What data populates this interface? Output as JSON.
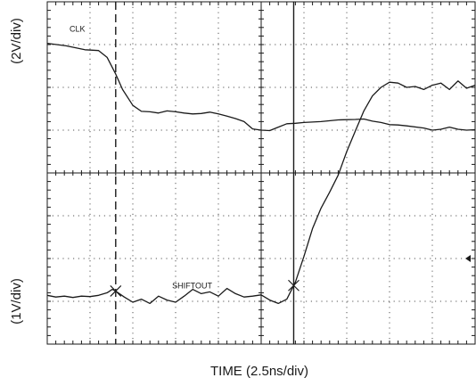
{
  "chart_data": {
    "type": "line",
    "title": "",
    "xlabel": "TIME (2.5ns/div)",
    "ylabel_top": "(2V/div)",
    "ylabel_bottom": "(1V/div)",
    "x_unit": "ns",
    "xlim": [
      0,
      25
    ],
    "divisions": {
      "x": 10,
      "y": 8
    },
    "grid": true,
    "series": [
      {
        "name": "CLK",
        "display_range_div": [
          4,
          8
        ],
        "x": [
          0,
          1.1,
          2.2,
          3.0,
          3.5,
          4.0,
          4.4,
          5.0,
          5.5,
          6.0,
          6.5,
          7.0,
          7.5,
          8.0,
          8.5,
          9.0,
          9.5,
          10.0,
          10.5,
          11.0,
          11.5,
          12.0,
          12.5,
          13.0,
          13.5,
          14.0,
          14.5,
          15.0,
          16.0,
          17.0,
          18.0,
          18.5,
          19.0,
          19.5,
          20.0,
          20.5,
          21.0,
          22.0,
          22.5,
          23.0,
          23.5,
          24.0,
          24.5,
          25.0
        ],
        "y_div": [
          7.03,
          6.97,
          6.88,
          6.86,
          6.7,
          6.31,
          5.95,
          5.58,
          5.44,
          5.43,
          5.4,
          5.45,
          5.43,
          5.4,
          5.38,
          5.39,
          5.42,
          5.38,
          5.33,
          5.27,
          5.2,
          5.03,
          5.0,
          4.99,
          5.07,
          5.15,
          5.16,
          5.18,
          5.2,
          5.24,
          5.25,
          5.26,
          5.21,
          5.18,
          5.13,
          5.12,
          5.1,
          5.05,
          5.0,
          5.02,
          5.07,
          5.02,
          5.0,
          5.01
        ]
      },
      {
        "name": "SHIFTOUT",
        "display_range_div": [
          0,
          4
        ],
        "x": [
          0,
          0.5,
          1.0,
          1.5,
          2.0,
          2.5,
          3.0,
          3.5,
          3.8,
          4.0,
          4.5,
          5.0,
          5.5,
          6.0,
          6.5,
          7.0,
          7.5,
          8.0,
          8.5,
          9.0,
          9.5,
          10.0,
          10.5,
          11.0,
          11.5,
          12.0,
          12.5,
          13.0,
          13.5,
          14.0,
          14.5,
          15.0,
          15.5,
          16.0,
          16.5,
          17.0,
          17.5,
          18.0,
          18.5,
          19.0,
          19.5,
          20.0,
          20.5,
          21.0,
          21.5,
          22.0,
          22.5,
          23.0,
          23.5,
          24.0,
          24.5,
          25.0
        ],
        "y_div": [
          1.14,
          1.1,
          1.12,
          1.09,
          1.12,
          1.11,
          1.14,
          1.2,
          1.28,
          1.24,
          1.1,
          0.98,
          1.05,
          0.95,
          1.12,
          1.03,
          0.98,
          1.12,
          1.28,
          1.18,
          1.22,
          1.12,
          1.3,
          1.18,
          1.1,
          1.12,
          1.15,
          1.03,
          0.95,
          1.05,
          1.45,
          2.05,
          2.7,
          3.18,
          3.55,
          3.95,
          4.5,
          4.98,
          5.45,
          5.8,
          6.0,
          6.12,
          6.1,
          6.0,
          6.02,
          5.95,
          6.05,
          6.1,
          5.95,
          6.15,
          5.98,
          6.05
        ]
      }
    ],
    "cursors": [
      {
        "style": "dashed",
        "x": 4.0,
        "marker_on": "SHIFTOUT"
      },
      {
        "style": "solid",
        "x": 14.4,
        "marker_on": "SHIFTOUT"
      }
    ]
  }
}
